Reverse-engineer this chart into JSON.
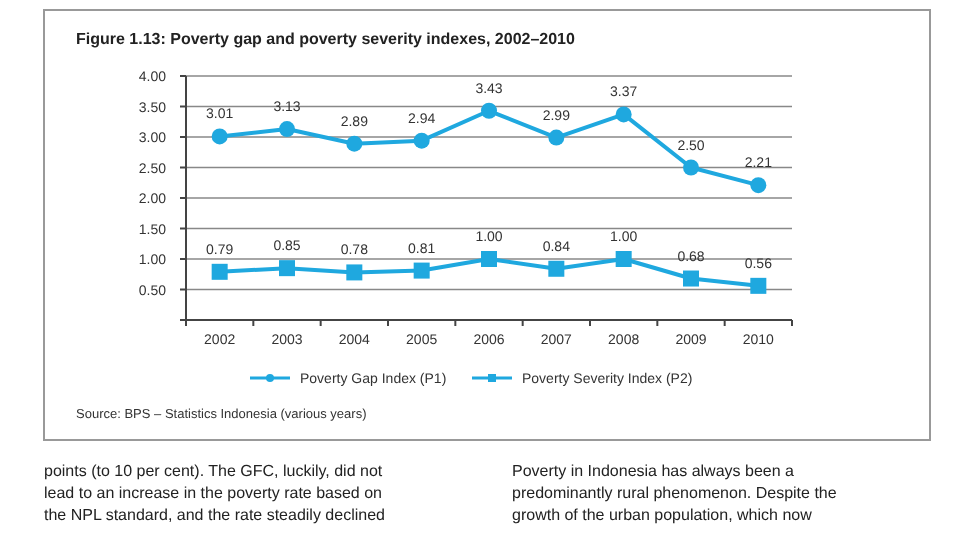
{
  "chart_data": {
    "type": "line",
    "title": "Figure 1.13: Poverty gap and poverty severity indexes, 2002–2010",
    "categories": [
      "2002",
      "2003",
      "2004",
      "2005",
      "2006",
      "2007",
      "2008",
      "2009",
      "2010"
    ],
    "series": [
      {
        "name": "Poverty Gap Index (P1)",
        "color": "#1fa8df",
        "marker": "circle",
        "values": [
          3.01,
          3.13,
          2.89,
          2.94,
          3.43,
          2.99,
          3.37,
          2.5,
          2.21
        ],
        "value_labels": [
          "3.01",
          "3.13",
          "2.89",
          "2.94",
          "3.43",
          "2.99",
          "3.37",
          "2.50",
          "2.21"
        ]
      },
      {
        "name": "Poverty Severity Index (P2)",
        "color": "#1fa8df",
        "marker": "square",
        "values": [
          0.79,
          0.85,
          0.78,
          0.81,
          1.0,
          0.84,
          1.0,
          0.68,
          0.56
        ],
        "value_labels": [
          "0.79",
          "0.85",
          "0.78",
          "0.81",
          "1.00",
          "0.84",
          "1.00",
          "0.68",
          "0.56"
        ]
      }
    ],
    "ylim": [
      0,
      4
    ],
    "yticks": [
      {
        "value": 0,
        "label": null
      },
      {
        "value": 0.5,
        "label": "0.50"
      },
      {
        "value": 1,
        "label": "1.00"
      },
      {
        "value": 1.5,
        "label": "1.50"
      },
      {
        "value": 2,
        "label": "2.00"
      },
      {
        "value": 2.5,
        "label": "2.50"
      },
      {
        "value": 3,
        "label": "3.00"
      },
      {
        "value": 3.5,
        "label": "3.50"
      },
      {
        "value": 4,
        "label": "4.00"
      }
    ],
    "grid": "y",
    "legend": "bottom",
    "line_style": "solid",
    "annotations": [
      "Source: BPS – Statistics Indonesia (various years)",
      "points (to 10 per cent). The GFC, luckily, did not",
      "lead to an increase in the poverty rate based on",
      "the NPL standard, and the rate steadily declined",
      "Poverty in Indonesia has always been a",
      "predominantly rural phenomenon. Despite the",
      "growth of the urban population, which now"
    ]
  }
}
